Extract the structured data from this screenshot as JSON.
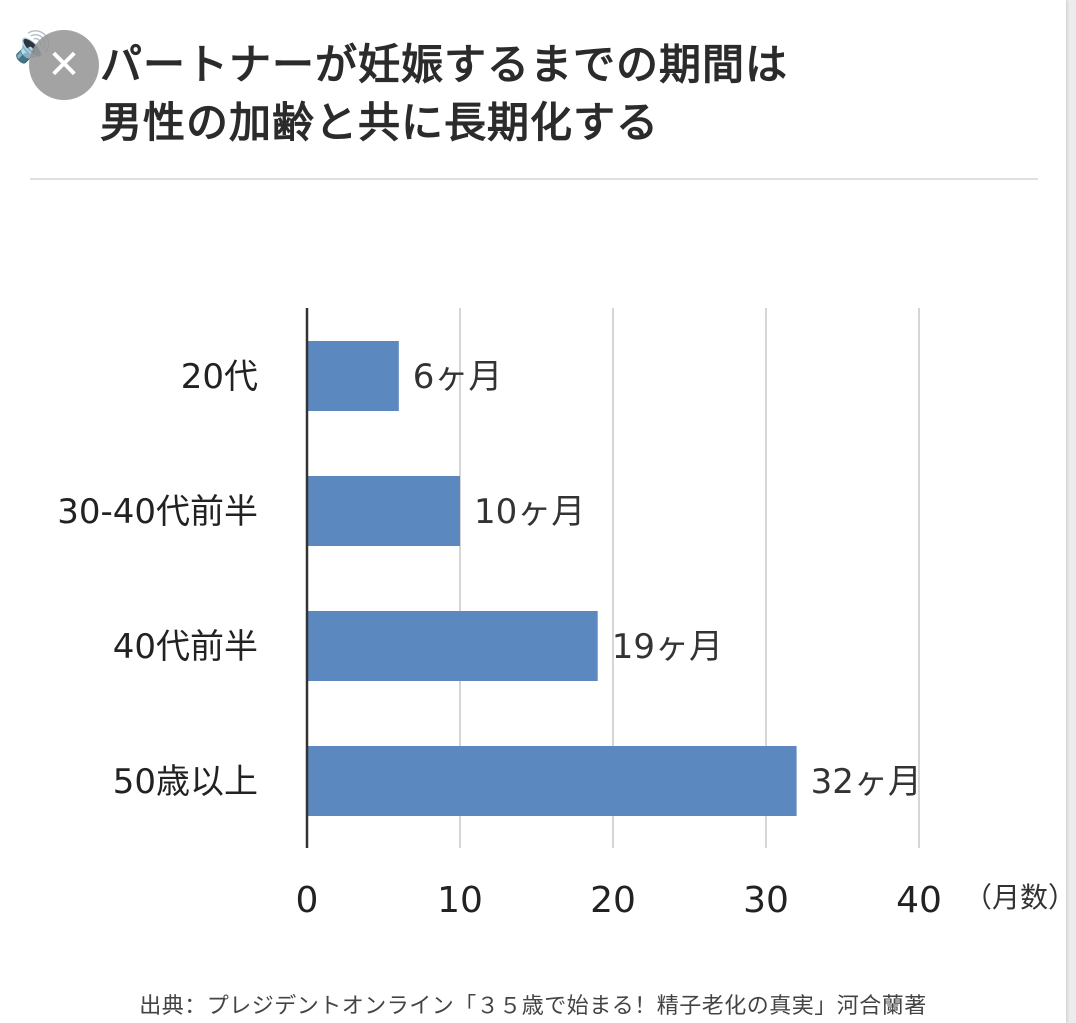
{
  "title_lines": [
    "パートナーが妊娠するまでの期間は",
    "男性の加齢と共に長期化する"
  ],
  "close_icon": "✕",
  "speaker_icon": "🔊",
  "source": "出典：プレジデントオンライン「３５歳で始まる！精子老化の真実」河合蘭著",
  "chart_data": {
    "type": "bar",
    "orientation": "horizontal",
    "title": "パートナーが妊娠するまでの期間は 男性の加齢と共に長期化する",
    "categories": [
      "20代",
      "30-40代前半",
      "40代前半",
      "50歳以上"
    ],
    "values": [
      6,
      10,
      19,
      32
    ],
    "data_labels": [
      "6ヶ月",
      "10ヶ月",
      "19ヶ月",
      "32ヶ月"
    ],
    "xlim": [
      0,
      40
    ],
    "xticks": [
      0,
      10,
      20,
      30,
      40
    ],
    "xlabel": "（月数）",
    "grid": true,
    "bar_color": "#5b88be"
  }
}
